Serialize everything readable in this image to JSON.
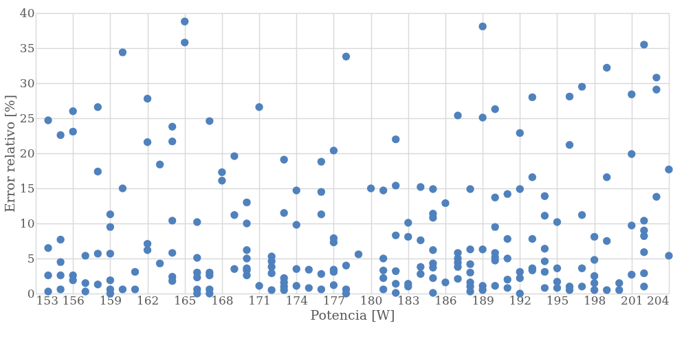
{
  "chart_data": {
    "type": "scatter",
    "xlabel": "Potencia [W]",
    "ylabel": "Error relativo [%]",
    "x": [
      154,
      154,
      154,
      154,
      155,
      155,
      155,
      155,
      155,
      156,
      156,
      156,
      156,
      157,
      157,
      157,
      158,
      158,
      158,
      158,
      159,
      159,
      159,
      159,
      159,
      159,
      160,
      160,
      160,
      161,
      161,
      162,
      162,
      162,
      162,
      163,
      163,
      164,
      164,
      164,
      164,
      164,
      164,
      165,
      165,
      166,
      166,
      166,
      166,
      166,
      166,
      167,
      167,
      167,
      167,
      167,
      168,
      168,
      169,
      169,
      169,
      170,
      170,
      170,
      170,
      170,
      170,
      170,
      171,
      171,
      172,
      172,
      172,
      172,
      172,
      173,
      173,
      173,
      173,
      173,
      173,
      174,
      174,
      174,
      174,
      175,
      175,
      176,
      176,
      176,
      176,
      176,
      177,
      177,
      177,
      177,
      177,
      177,
      178,
      178,
      178,
      178,
      179,
      180,
      181,
      181,
      181,
      181,
      181,
      182,
      182,
      182,
      182,
      182,
      182,
      183,
      183,
      183,
      183,
      184,
      184,
      184,
      184,
      185,
      185,
      185,
      185,
      185,
      185,
      185,
      185,
      186,
      186,
      187,
      187,
      187,
      187,
      187,
      187,
      188,
      188,
      188,
      188,
      188,
      188,
      188,
      189,
      189,
      189,
      189,
      189,
      190,
      190,
      190,
      190,
      190,
      190,
      190,
      191,
      191,
      191,
      191,
      191,
      192,
      192,
      192,
      192,
      192,
      193,
      193,
      193,
      193,
      193,
      194,
      194,
      194,
      194,
      194,
      194,
      195,
      195,
      195,
      195,
      196,
      196,
      196,
      196,
      197,
      197,
      197,
      197,
      198,
      198,
      198,
      198,
      198,
      199,
      199,
      199,
      199,
      200,
      200,
      201,
      201,
      201,
      201,
      202,
      202,
      202,
      202,
      202,
      202,
      202,
      203,
      203,
      203,
      204,
      204
    ],
    "values": [
      24.7,
      6.5,
      2.6,
      0.3,
      22.6,
      7.7,
      4.5,
      2.6,
      0.6,
      26.0,
      23.1,
      2.6,
      1.9,
      5.4,
      1.5,
      0.3,
      26.6,
      17.4,
      5.7,
      1.3,
      11.3,
      9.5,
      5.7,
      1.9,
      0.6,
      0.0,
      34.4,
      15.0,
      0.6,
      3.1,
      0.6,
      27.8,
      21.6,
      7.1,
      6.2,
      18.4,
      4.3,
      23.8,
      21.7,
      10.4,
      5.8,
      2.4,
      1.8,
      38.8,
      35.8,
      10.2,
      5.1,
      3.0,
      2.3,
      0.6,
      0.0,
      24.6,
      3.0,
      2.6,
      0.6,
      0.0,
      17.3,
      16.1,
      19.6,
      11.2,
      3.5,
      13.0,
      10.0,
      6.2,
      5.0,
      3.6,
      3.3,
      2.6,
      26.6,
      1.1,
      5.3,
      4.6,
      3.8,
      2.9,
      0.5,
      19.1,
      11.5,
      2.2,
      1.6,
      1.0,
      0.5,
      14.7,
      9.8,
      3.5,
      1.1,
      3.4,
      0.8,
      18.8,
      14.5,
      11.3,
      2.8,
      0.6,
      20.4,
      7.9,
      7.3,
      3.4,
      3.1,
      1.2,
      33.8,
      4.0,
      0.6,
      0.0,
      5.6,
      15.0,
      14.7,
      5.0,
      3.3,
      2.2,
      0.6,
      22.0,
      15.4,
      8.3,
      3.2,
      1.4,
      0.1,
      10.1,
      8.1,
      1.4,
      1.0,
      15.2,
      7.6,
      3.8,
      2.8,
      14.9,
      11.4,
      10.8,
      6.2,
      4.3,
      3.7,
      2.2,
      0.1,
      12.9,
      1.6,
      25.4,
      5.8,
      5.0,
      4.4,
      3.8,
      2.1,
      14.9,
      6.3,
      4.2,
      3.0,
      1.6,
      1.0,
      0.3,
      38.1,
      25.1,
      6.3,
      1.1,
      0.5,
      26.3,
      13.7,
      9.5,
      5.8,
      5.2,
      4.7,
      1.1,
      14.2,
      7.8,
      5.0,
      2.0,
      0.8,
      22.9,
      14.9,
      3.1,
      2.2,
      0.0,
      28.0,
      16.6,
      7.8,
      3.6,
      3.3,
      13.9,
      11.1,
      6.4,
      4.6,
      3.1,
      0.8,
      10.2,
      3.6,
      1.7,
      0.8,
      28.1,
      21.2,
      1.0,
      0.5,
      29.5,
      11.2,
      3.6,
      1.0,
      8.1,
      4.8,
      2.5,
      1.5,
      0.5,
      32.2,
      16.6,
      7.5,
      0.5,
      1.5,
      0.5,
      28.4,
      19.9,
      9.7,
      2.7,
      35.5,
      10.4,
      9.0,
      8.2,
      5.9,
      2.9,
      1.0,
      30.8,
      29.1,
      13.8,
      17.7,
      5.4
    ],
    "color": "#4f81bd",
    "marker": "circle",
    "xlim": [
      153,
      204
    ],
    "xticks": [
      153,
      156,
      159,
      162,
      165,
      168,
      171,
      174,
      177,
      180,
      183,
      186,
      189,
      192,
      195,
      198,
      201,
      204
    ],
    "ylim": [
      0,
      40
    ],
    "yticks": [
      0,
      5,
      10,
      15,
      20,
      25,
      30,
      35,
      40
    ],
    "grid": true
  }
}
